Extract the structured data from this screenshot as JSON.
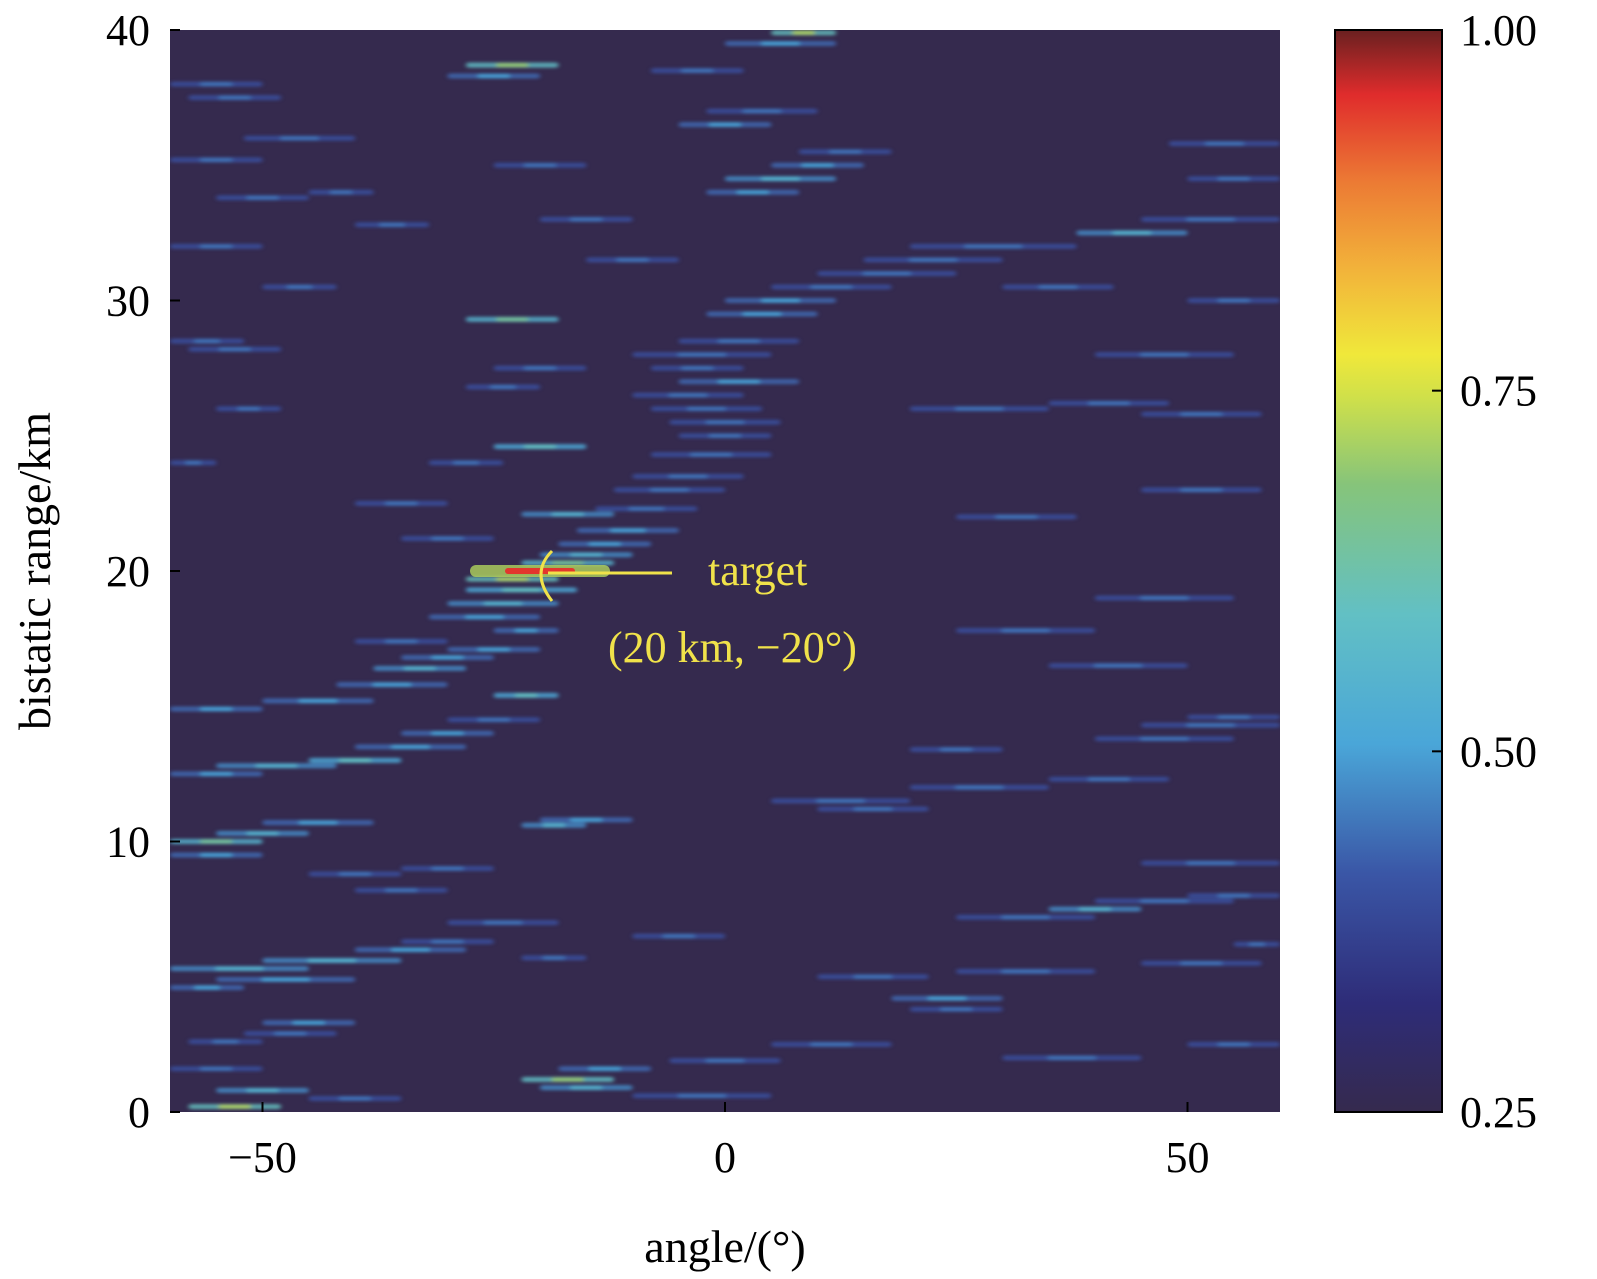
{
  "chart_data": {
    "type": "heatmap",
    "xlabel": "angle/(°)",
    "ylabel": "bistatic range/km",
    "xlim": [
      -60,
      60
    ],
    "ylim": [
      0,
      40
    ],
    "xticks": [
      -50,
      0,
      50
    ],
    "xtick_labels": [
      "−50",
      "0",
      "50"
    ],
    "yticks": [
      0,
      10,
      20,
      30,
      40
    ],
    "ytick_labels": [
      "0",
      "10",
      "20",
      "30",
      "40"
    ],
    "colorbar": {
      "min": 0.25,
      "max": 1.0,
      "ticks": [
        0.25,
        0.5,
        0.75,
        1.0
      ],
      "tick_labels": [
        "0.25",
        "0.50",
        "0.75",
        "1.00"
      ],
      "colormap": "jet-like",
      "background_color": "#352a4e"
    },
    "annotation": {
      "line1": "target",
      "line2": "(20 km, −20°)",
      "point_angle": -20,
      "point_range": 20,
      "color": "#f0e24a"
    },
    "peak": {
      "angle": -20,
      "range": 20,
      "value": 1.0
    },
    "streaks": [
      [
        -58,
        -48,
        0.2,
        0.72
      ],
      [
        -55,
        -45,
        0.8,
        0.55
      ],
      [
        -22,
        -12,
        1.2,
        0.7
      ],
      [
        -20,
        -10,
        0.9,
        0.55
      ],
      [
        -18,
        -8,
        1.6,
        0.5
      ],
      [
        -6,
        6,
        1.9,
        0.45
      ],
      [
        -60,
        -50,
        1.6,
        0.45
      ],
      [
        -50,
        -40,
        3.3,
        0.5
      ],
      [
        -52,
        -42,
        2.9,
        0.45
      ],
      [
        -58,
        -50,
        2.6,
        0.45
      ],
      [
        20,
        30,
        3.8,
        0.45
      ],
      [
        18,
        30,
        4.2,
        0.5
      ],
      [
        5,
        18,
        2.5,
        0.45
      ],
      [
        -60,
        -52,
        4.6,
        0.5
      ],
      [
        -60,
        -45,
        5.3,
        0.55
      ],
      [
        -50,
        -35,
        5.6,
        0.55
      ],
      [
        -40,
        -28,
        6.0,
        0.5
      ],
      [
        -55,
        -40,
        4.9,
        0.5
      ],
      [
        -35,
        -25,
        6.3,
        0.45
      ],
      [
        -30,
        -18,
        7.0,
        0.45
      ],
      [
        -22,
        -15,
        5.7,
        0.45
      ],
      [
        35,
        45,
        7.5,
        0.55
      ],
      [
        40,
        55,
        7.8,
        0.45
      ],
      [
        25,
        40,
        7.2,
        0.45
      ],
      [
        45,
        60,
        9.2,
        0.45
      ],
      [
        50,
        60,
        8.0,
        0.45
      ],
      [
        -10,
        0,
        6.5,
        0.45
      ],
      [
        -60,
        -50,
        10.0,
        0.65
      ],
      [
        -55,
        -45,
        10.3,
        0.55
      ],
      [
        -50,
        -38,
        10.7,
        0.5
      ],
      [
        -22,
        -15,
        10.6,
        0.55
      ],
      [
        -20,
        -10,
        10.8,
        0.5
      ],
      [
        -60,
        -50,
        9.5,
        0.5
      ],
      [
        -45,
        -35,
        8.8,
        0.45
      ],
      [
        -40,
        -30,
        8.2,
        0.45
      ],
      [
        -35,
        -25,
        9.0,
        0.45
      ],
      [
        5,
        20,
        11.5,
        0.45
      ],
      [
        10,
        22,
        11.2,
        0.45
      ],
      [
        20,
        35,
        12.0,
        0.45
      ],
      [
        35,
        48,
        12.3,
        0.45
      ],
      [
        -60,
        -50,
        12.5,
        0.5
      ],
      [
        -55,
        -42,
        12.8,
        0.55
      ],
      [
        -45,
        -35,
        13.0,
        0.6
      ],
      [
        -40,
        -28,
        13.5,
        0.5
      ],
      [
        -35,
        -25,
        14.0,
        0.5
      ],
      [
        -30,
        -20,
        14.5,
        0.45
      ],
      [
        -60,
        -50,
        14.9,
        0.5
      ],
      [
        -50,
        -38,
        15.2,
        0.5
      ],
      [
        -25,
        -18,
        15.4,
        0.6
      ],
      [
        -42,
        -30,
        15.8,
        0.5
      ],
      [
        -38,
        -28,
        16.4,
        0.55
      ],
      [
        -35,
        -25,
        16.8,
        0.5
      ],
      [
        -30,
        -20,
        17.1,
        0.5
      ],
      [
        -40,
        -30,
        17.4,
        0.45
      ],
      [
        -25,
        -18,
        17.8,
        0.5
      ],
      [
        40,
        55,
        13.8,
        0.45
      ],
      [
        45,
        60,
        14.3,
        0.45
      ],
      [
        50,
        60,
        14.6,
        0.45
      ],
      [
        20,
        30,
        13.4,
        0.45
      ],
      [
        -32,
        -20,
        18.3,
        0.5
      ],
      [
        -30,
        -18,
        18.8,
        0.55
      ],
      [
        -28,
        -16,
        19.3,
        0.6
      ],
      [
        -28,
        -18,
        19.7,
        0.72
      ],
      [
        -22,
        -12,
        20.3,
        0.65
      ],
      [
        -20,
        -10,
        20.6,
        0.55
      ],
      [
        -18,
        -8,
        21.0,
        0.5
      ],
      [
        -16,
        -5,
        21.5,
        0.5
      ],
      [
        -22,
        -12,
        22.1,
        0.55
      ],
      [
        -14,
        -3,
        22.3,
        0.45
      ],
      [
        -12,
        0,
        23.0,
        0.45
      ],
      [
        -10,
        2,
        23.5,
        0.45
      ],
      [
        -8,
        5,
        24.3,
        0.45
      ],
      [
        -25,
        -15,
        24.6,
        0.6
      ],
      [
        -5,
        5,
        25.0,
        0.45
      ],
      [
        -6,
        6,
        25.5,
        0.45
      ],
      [
        -8,
        4,
        26.0,
        0.45
      ],
      [
        -10,
        2,
        26.5,
        0.45
      ],
      [
        -5,
        8,
        27.0,
        0.5
      ],
      [
        -8,
        2,
        27.5,
        0.45
      ],
      [
        -10,
        5,
        28.0,
        0.45
      ],
      [
        -5,
        8,
        28.5,
        0.45
      ],
      [
        -28,
        -18,
        29.3,
        0.65
      ],
      [
        -2,
        10,
        29.5,
        0.5
      ],
      [
        0,
        12,
        30.0,
        0.5
      ],
      [
        5,
        18,
        30.5,
        0.45
      ],
      [
        10,
        25,
        31.0,
        0.45
      ],
      [
        15,
        30,
        31.5,
        0.45
      ],
      [
        20,
        38,
        32.0,
        0.45
      ],
      [
        38,
        50,
        32.5,
        0.55
      ],
      [
        45,
        60,
        33.0,
        0.45
      ],
      [
        20,
        35,
        26.0,
        0.45
      ],
      [
        35,
        48,
        26.2,
        0.45
      ],
      [
        45,
        58,
        25.8,
        0.45
      ],
      [
        -60,
        -52,
        28.5,
        0.45
      ],
      [
        -58,
        -48,
        28.2,
        0.45
      ],
      [
        -60,
        -50,
        32.0,
        0.45
      ],
      [
        -2,
        8,
        34.0,
        0.5
      ],
      [
        0,
        12,
        34.5,
        0.55
      ],
      [
        5,
        15,
        35.0,
        0.5
      ],
      [
        8,
        18,
        35.5,
        0.45
      ],
      [
        -5,
        5,
        36.5,
        0.5
      ],
      [
        -2,
        10,
        37.0,
        0.45
      ],
      [
        -28,
        -18,
        38.7,
        0.7
      ],
      [
        -30,
        -20,
        38.3,
        0.5
      ],
      [
        5,
        12,
        39.9,
        0.72
      ],
      [
        0,
        12,
        39.5,
        0.5
      ],
      [
        -8,
        2,
        38.5,
        0.45
      ],
      [
        -60,
        -50,
        38.0,
        0.45
      ],
      [
        -58,
        -48,
        37.5,
        0.45
      ],
      [
        -52,
        -40,
        36.0,
        0.45
      ],
      [
        -60,
        -50,
        35.2,
        0.45
      ],
      [
        -55,
        -45,
        33.8,
        0.45
      ],
      [
        -40,
        -32,
        32.8,
        0.45
      ],
      [
        30,
        42,
        30.5,
        0.45
      ],
      [
        50,
        60,
        30.0,
        0.45
      ],
      [
        50,
        60,
        34.5,
        0.45
      ],
      [
        48,
        60,
        35.8,
        0.45
      ],
      [
        40,
        55,
        28.0,
        0.45
      ],
      [
        45,
        58,
        23.0,
        0.45
      ],
      [
        25,
        38,
        22.0,
        0.45
      ],
      [
        25,
        40,
        17.8,
        0.45
      ],
      [
        40,
        55,
        19.0,
        0.45
      ],
      [
        35,
        50,
        16.5,
        0.45
      ],
      [
        10,
        22,
        5.0,
        0.45
      ],
      [
        25,
        40,
        5.2,
        0.45
      ],
      [
        45,
        58,
        5.5,
        0.45
      ],
      [
        55,
        60,
        6.2,
        0.45
      ],
      [
        -45,
        -35,
        0.5,
        0.45
      ],
      [
        -10,
        5,
        0.6,
        0.45
      ],
      [
        30,
        45,
        2.0,
        0.45
      ],
      [
        50,
        60,
        2.5,
        0.45
      ],
      [
        -35,
        -25,
        21.2,
        0.45
      ],
      [
        -40,
        -30,
        22.5,
        0.45
      ],
      [
        -32,
        -24,
        24.0,
        0.45
      ],
      [
        -28,
        -20,
        26.8,
        0.45
      ],
      [
        -25,
        -15,
        27.5,
        0.45
      ],
      [
        -15,
        -5,
        31.5,
        0.45
      ],
      [
        -20,
        -10,
        33.0,
        0.45
      ],
      [
        -25,
        -15,
        35.0,
        0.45
      ],
      [
        -60,
        -55,
        24.0,
        0.45
      ],
      [
        -55,
        -48,
        26.0,
        0.45
      ],
      [
        -50,
        -42,
        30.5,
        0.45
      ],
      [
        -45,
        -38,
        34.0,
        0.45
      ]
    ]
  }
}
